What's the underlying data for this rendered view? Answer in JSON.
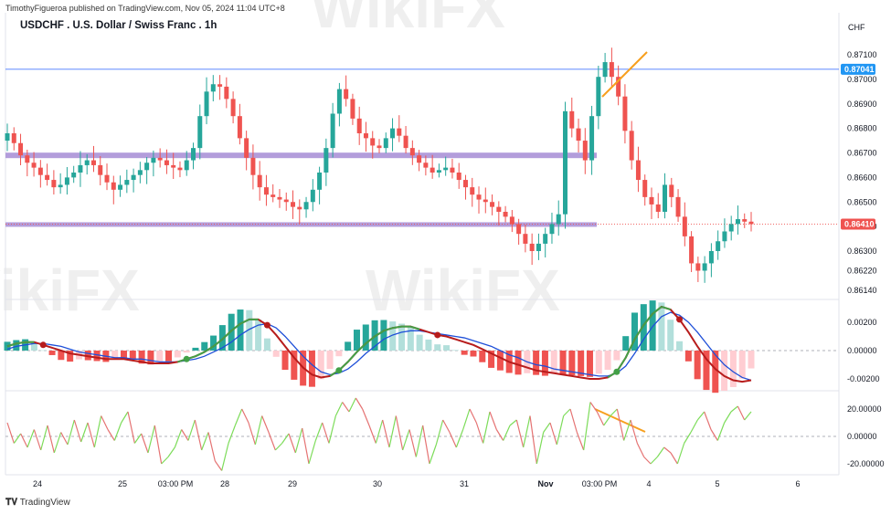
{
  "header": {
    "publisher": "TimothyFigueroa published on TradingView.com, Nov 05, 2024 11:04 UTC+8",
    "title": "USDCHF . U.S. Dollar / Swiss Franc . 1h",
    "currency": "CHF"
  },
  "footer": {
    "brand": "TradingView"
  },
  "chart_data": [
    {
      "type": "candlestick",
      "title": "USDCHF . U.S. Dollar / Swiss Franc . 1h",
      "y_ticks": [
        "0.87100",
        "0.87000",
        "0.86900",
        "0.86800",
        "0.86700",
        "0.86600",
        "0.86500",
        "0.86400",
        "0.86300",
        "0.86220",
        "0.86140"
      ],
      "ylim": [
        0.861,
        0.8712
      ],
      "last_price": "0.86410",
      "horizontal_line": "0.87041",
      "zones": [
        0.8669,
        0.8641
      ],
      "close_series": [
        0.8678,
        0.8674,
        0.8669,
        0.8666,
        0.8664,
        0.8661,
        0.8659,
        0.8656,
        0.8657,
        0.866,
        0.8662,
        0.8665,
        0.8667,
        0.8665,
        0.8661,
        0.8658,
        0.8655,
        0.8657,
        0.8659,
        0.8661,
        0.8663,
        0.8666,
        0.8668,
        0.8667,
        0.8665,
        0.8664,
        0.8663,
        0.8667,
        0.8672,
        0.8685,
        0.8695,
        0.8698,
        0.8697,
        0.8692,
        0.8685,
        0.8676,
        0.8668,
        0.8661,
        0.8656,
        0.8653,
        0.8652,
        0.8651,
        0.865,
        0.8648,
        0.8647,
        0.865,
        0.8655,
        0.8662,
        0.8672,
        0.8686,
        0.8696,
        0.8692,
        0.8684,
        0.8678,
        0.8676,
        0.8673,
        0.8672,
        0.8676,
        0.868,
        0.8677,
        0.8672,
        0.8669,
        0.8666,
        0.8664,
        0.8662,
        0.8663,
        0.8664,
        0.8662,
        0.8659,
        0.8656,
        0.8653,
        0.8651,
        0.865,
        0.8648,
        0.8646,
        0.8644,
        0.8641,
        0.8637,
        0.8633,
        0.863,
        0.8633,
        0.8637,
        0.8641,
        0.8645,
        0.8687,
        0.868,
        0.8675,
        0.8667,
        0.8685,
        0.8701,
        0.8707,
        0.8701,
        0.8693,
        0.8679,
        0.8667,
        0.8659,
        0.8652,
        0.8649,
        0.8646,
        0.8657,
        0.8652,
        0.8644,
        0.8636,
        0.8625,
        0.8622,
        0.8625,
        0.863,
        0.8634,
        0.8638,
        0.8641,
        0.8643,
        0.8642,
        0.8641
      ]
    },
    {
      "type": "line",
      "name": "macd",
      "y_ticks": [
        "0.00200",
        "0.00000",
        "-0.00200"
      ],
      "ylim": [
        -0.0029,
        0.003
      ],
      "macd_series": [
        0.0003,
        0.0005,
        0.0006,
        0.0006,
        0.0004,
        0.0002,
        0.0,
        -0.0002,
        -0.0003,
        -0.0004,
        -0.0005,
        -0.0006,
        -0.0006,
        -0.0006,
        -0.0007,
        -0.0008,
        -0.0009,
        -0.0009,
        -0.0009,
        -0.0008,
        -0.0006,
        -0.0004,
        -0.0001,
        0.0003,
        0.0008,
        0.0014,
        0.0019,
        0.0022,
        0.0022,
        0.0018,
        0.0011,
        0.0003,
        -0.0005,
        -0.0012,
        -0.0017,
        -0.0019,
        -0.0018,
        -0.0014,
        -0.0008,
        -0.0001,
        0.0005,
        0.001,
        0.0014,
        0.0016,
        0.0017,
        0.0017,
        0.0015,
        0.0013,
        0.0011,
        0.001,
        0.0008,
        0.0006,
        0.0004,
        0.0001,
        -0.0002,
        -0.0005,
        -0.0008,
        -0.001,
        -0.0012,
        -0.0014,
        -0.0015,
        -0.0016,
        -0.0017,
        -0.0018,
        -0.0019,
        -0.002,
        -0.002,
        -0.0019,
        -0.0015,
        -0.0005,
        0.0008,
        0.0018,
        0.0026,
        0.0031,
        0.0029,
        0.0022,
        0.0013,
        0.0003,
        -0.0006,
        -0.0013,
        -0.0018,
        -0.0021,
        -0.0022,
        -0.0021
      ],
      "signal_series": [
        0.0001,
        0.0003,
        0.0004,
        0.0005,
        0.0005,
        0.0004,
        0.0003,
        0.0001,
        -0.0001,
        -0.0002,
        -0.0003,
        -0.0004,
        -0.0005,
        -0.0005,
        -0.0006,
        -0.0006,
        -0.0007,
        -0.0008,
        -0.0008,
        -0.0008,
        -0.0007,
        -0.0006,
        -0.0004,
        -0.0001,
        0.0002,
        0.0006,
        0.0011,
        0.0015,
        0.0018,
        0.0019,
        0.0016,
        0.001,
        0.0003,
        -0.0004,
        -0.001,
        -0.0015,
        -0.0017,
        -0.0016,
        -0.0013,
        -0.0008,
        -0.0002,
        0.0003,
        0.0008,
        0.0011,
        0.0013,
        0.0014,
        0.0014,
        0.0013,
        0.0012,
        0.0011,
        0.001,
        0.0009,
        0.0007,
        0.0005,
        0.0003,
        0.0,
        -0.0003,
        -0.0005,
        -0.0008,
        -0.001,
        -0.0011,
        -0.0013,
        -0.0014,
        -0.0015,
        -0.0016,
        -0.0017,
        -0.0018,
        -0.0018,
        -0.0016,
        -0.0011,
        -0.0002,
        0.0008,
        0.0017,
        0.0024,
        0.0027,
        0.0025,
        0.002,
        0.0013,
        0.0005,
        -0.0003,
        -0.001,
        -0.0015,
        -0.0019,
        -0.0021
      ]
    },
    {
      "type": "line",
      "name": "oscillator",
      "y_ticks": [
        "20.00000",
        "0.00000",
        "-20.00000"
      ],
      "ylim": [
        -25,
        32
      ],
      "series": [
        10,
        -5,
        2,
        -8,
        5,
        -10,
        8,
        -12,
        3,
        -6,
        12,
        -4,
        10,
        -8,
        15,
        5,
        -3,
        10,
        18,
        -5,
        2,
        -12,
        8,
        -20,
        -15,
        -8,
        5,
        -3,
        12,
        -10,
        3,
        -18,
        -25,
        -5,
        8,
        20,
        10,
        -6,
        15,
        3,
        -10,
        -5,
        2,
        -12,
        6,
        -20,
        -3,
        10,
        -5,
        15,
        25,
        18,
        28,
        20,
        8,
        -5,
        12,
        -8,
        15,
        -10,
        5,
        -15,
        8,
        -20,
        -6,
        12,
        3,
        -8,
        5,
        20,
        10,
        -5,
        18,
        5,
        -3,
        8,
        12,
        -8,
        15,
        -20,
        3,
        10,
        -6,
        15,
        20,
        3,
        -10,
        25,
        18,
        8,
        15,
        20,
        -3,
        12,
        -5,
        -15,
        -20,
        -15,
        -8,
        -12,
        -20,
        -5,
        3,
        12,
        18,
        5,
        -3,
        10,
        18,
        22,
        12,
        18
      ]
    }
  ],
  "x_labels": [
    "24",
    "25",
    "03:00 PM",
    "28",
    "29",
    "30",
    "31",
    "Nov",
    "03:00 PM",
    "4",
    "5",
    "6"
  ],
  "colors": {
    "up": "#26a69a",
    "down": "#ef5350",
    "zone": "#b39ddb",
    "hline": "#2962ff",
    "price_tag": "#2196f3",
    "trend": "#f7a01e",
    "macd_line": "#b71c1c",
    "signal_line": "#1e4fd8",
    "osc_up": "#7ddc5a",
    "osc_down": "#e57373"
  },
  "watermark": "WikiFX"
}
